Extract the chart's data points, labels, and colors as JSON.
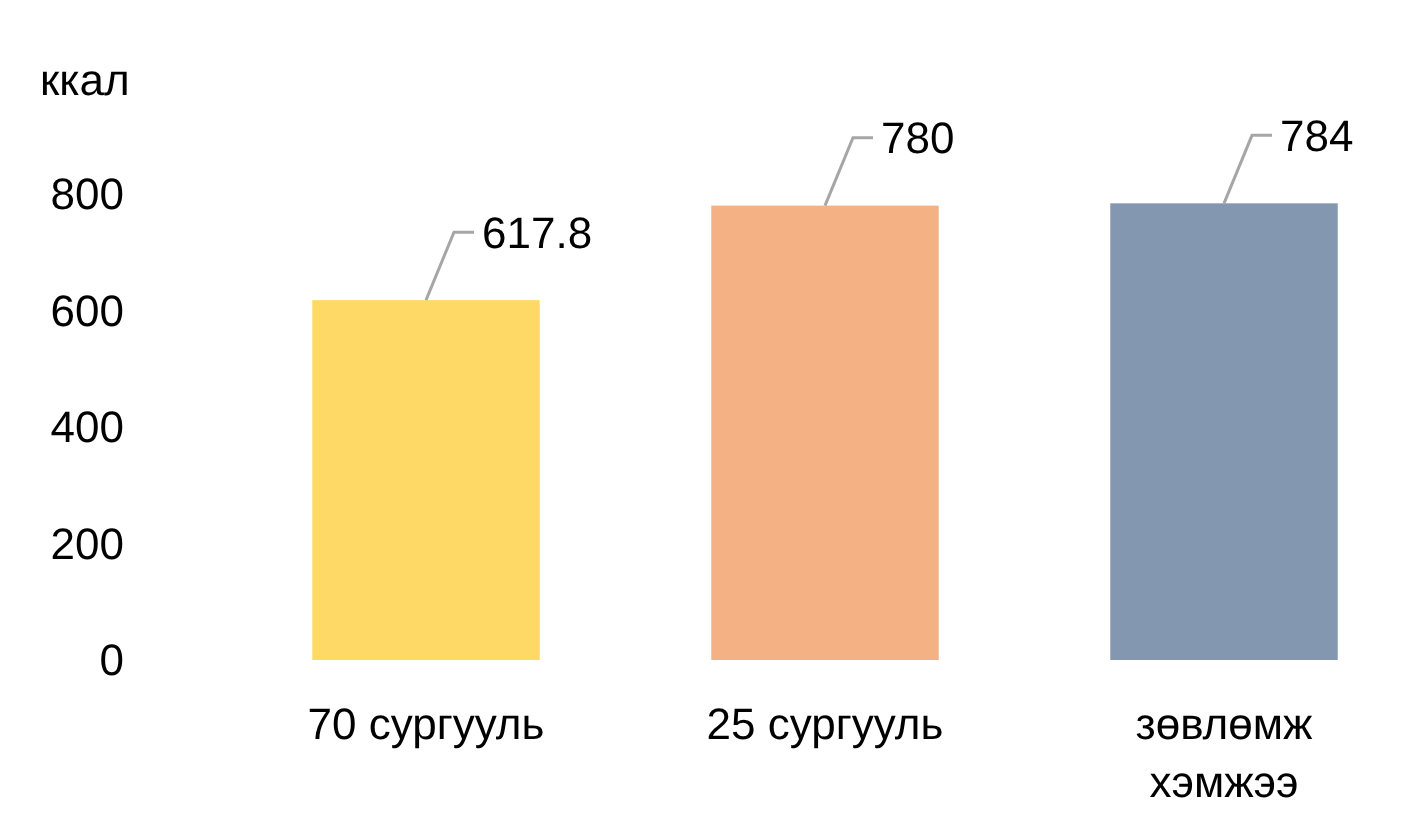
{
  "chart_data": {
    "type": "bar",
    "ylabel": "ккал",
    "categories": [
      "70 сургууль",
      "25 сургууль",
      "зөвлөмж\nхэмжээ"
    ],
    "values": [
      617.8,
      780,
      784
    ],
    "colors": [
      "#ffd966",
      "#f4b183",
      "#8497b0"
    ],
    "ylim": [
      0,
      800
    ],
    "yticks": [
      0,
      200,
      400,
      600,
      800
    ],
    "data_labels": true
  }
}
